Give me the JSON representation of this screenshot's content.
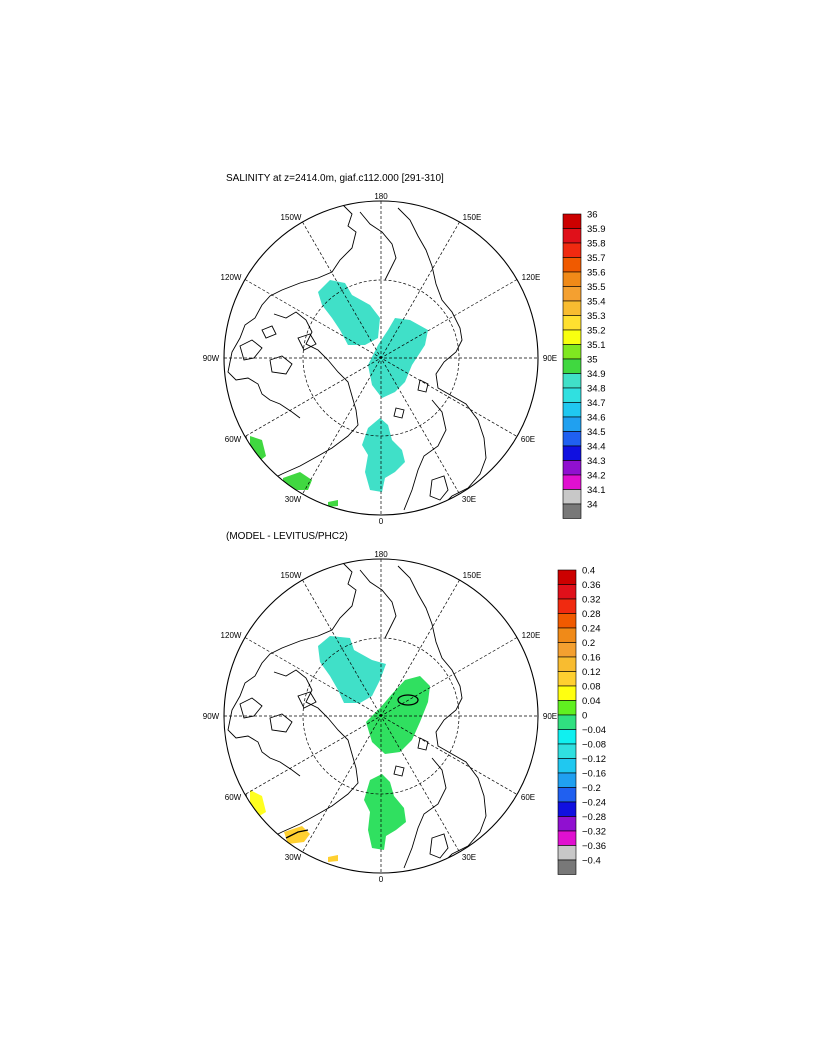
{
  "panels": [
    {
      "title": "SALINITY at z=2414.0m, giaf.c112.000 [291-310]",
      "longitude_labels": [
        "180",
        "150E",
        "120E",
        "90E",
        "60E",
        "30E",
        "0",
        "30W",
        "60W",
        "90W",
        "120W",
        "150W"
      ],
      "colorbar": {
        "labels": [
          "36",
          "35.9",
          "35.8",
          "35.7",
          "35.6",
          "35.5",
          "35.4",
          "35.3",
          "35.2",
          "35.1",
          "35",
          "34.9",
          "34.8",
          "34.7",
          "34.6",
          "34.5",
          "34.4",
          "34.3",
          "34.2",
          "34.1",
          "34"
        ],
        "colors": [
          "#cc0000",
          "#e0101a",
          "#f02a10",
          "#f05a00",
          "#f08a18",
          "#f4a030",
          "#f8bc30",
          "#ffe030",
          "#f8ff10",
          "#80e820",
          "#40d840",
          "#40e0c8",
          "#30e0e0",
          "#20c8f0",
          "#20a0f0",
          "#2060f0",
          "#1010e0",
          "#9010d0",
          "#e010d0",
          "#c8c8c8",
          "#787878"
        ]
      }
    },
    {
      "title": "(MODEL - LEVITUS/PHC2)",
      "longitude_labels": [
        "180",
        "150E",
        "120E",
        "90E",
        "60E",
        "30E",
        "0",
        "30W",
        "60W",
        "90W",
        "120W",
        "150W"
      ],
      "colorbar": {
        "labels": [
          "0.4",
          "0.36",
          "0.32",
          "0.28",
          "0.24",
          "0.2",
          "0.16",
          "0.12",
          "0.08",
          "0.04",
          "0",
          "−0.04",
          "−0.08",
          "−0.12",
          "−0.16",
          "−0.2",
          "−0.24",
          "−0.28",
          "−0.32",
          "−0.36",
          "−0.4"
        ],
        "colors": [
          "#cc0000",
          "#e0101a",
          "#f02a10",
          "#f05a00",
          "#f08a18",
          "#f4a030",
          "#f8bc30",
          "#ffd030",
          "#ffff10",
          "#60f020",
          "#30e080",
          "#10f0f0",
          "#30e0e0",
          "#20c8f0",
          "#20a0f0",
          "#2060f0",
          "#1010e0",
          "#9010d0",
          "#e010d0",
          "#c8c8c8",
          "#787878"
        ]
      }
    }
  ],
  "map_fill_colors": {
    "top_main": "#40e0c8",
    "top_green": "#40d840",
    "bottom_main": "#40e0c8",
    "bottom_green": "#30e060",
    "bottom_yellow": "#ffff20",
    "bottom_orange": "#ffd030"
  }
}
